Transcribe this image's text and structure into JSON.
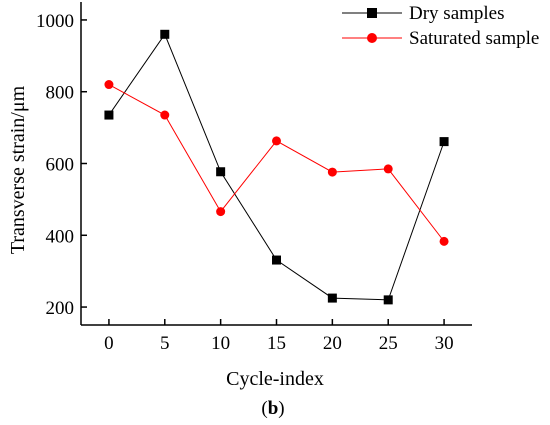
{
  "chart_data": {
    "type": "line",
    "xlabel": "Cycle-index",
    "ylabel": "Transverse strain/μm",
    "caption": {
      "open": "(",
      "letter": "b",
      "close": ")"
    },
    "x": [
      0,
      5,
      10,
      15,
      20,
      25,
      30
    ],
    "xticks": [
      "0",
      "5",
      "10",
      "15",
      "20",
      "25",
      "30"
    ],
    "yticks": [
      "200",
      "400",
      "600",
      "800",
      "1000"
    ],
    "xlim": [
      -2.5,
      32.5
    ],
    "ylim": [
      150,
      1050
    ],
    "legend_position": "top-right",
    "series": [
      {
        "name": "Dry samples",
        "color": "#000000",
        "marker": "square",
        "values": [
          735,
          960,
          577,
          331,
          225,
          220,
          661
        ]
      },
      {
        "name": "Saturated sample",
        "color": "#ff0000",
        "marker": "circle",
        "values": [
          820,
          735,
          466,
          663,
          576,
          585,
          383
        ]
      }
    ]
  }
}
